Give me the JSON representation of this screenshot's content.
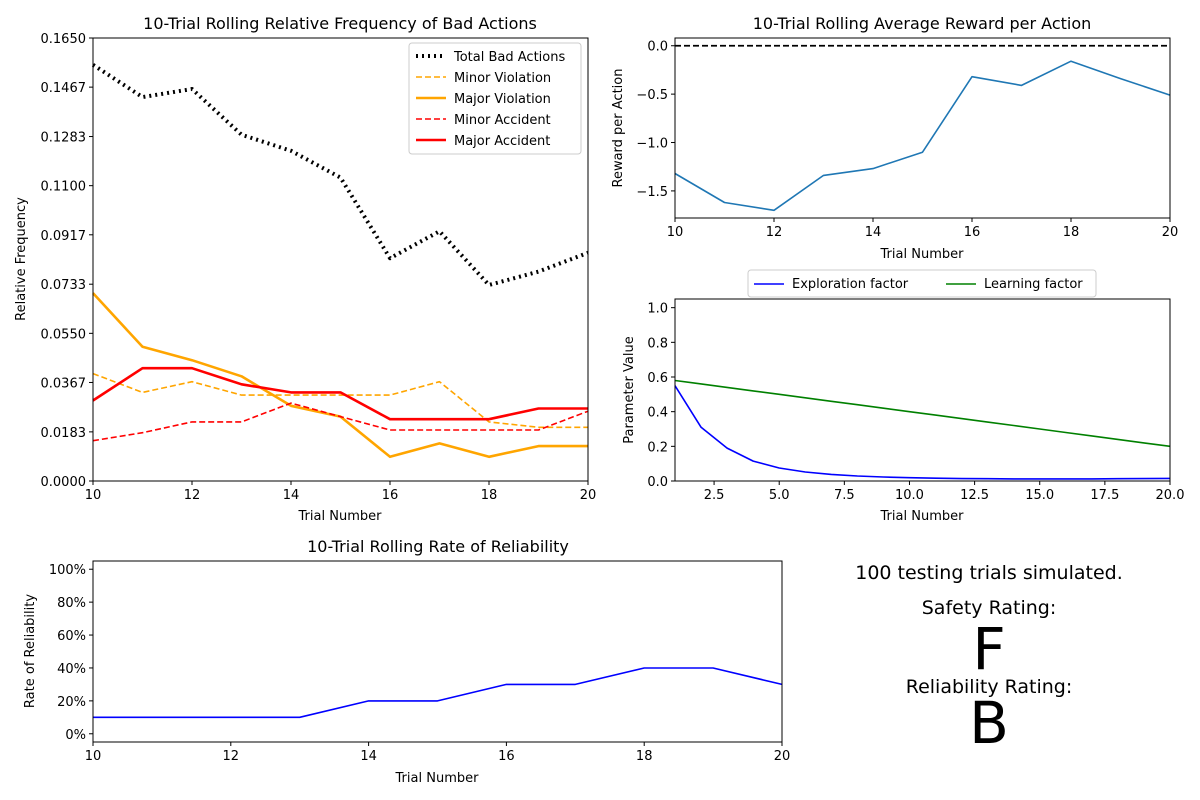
{
  "chart_data": [
    {
      "type": "line",
      "title": "10-Trial Rolling Relative Frequency of Bad Actions",
      "xlabel": "Trial Number",
      "ylabel": "Relative Frequency",
      "xlim": [
        10,
        20
      ],
      "ylim": [
        0,
        0.165
      ],
      "xticks": [
        "10",
        "12",
        "14",
        "16",
        "18",
        "20"
      ],
      "yticks": [
        "0.0000",
        "0.0183",
        "0.0367",
        "0.0550",
        "0.0733",
        "0.0917",
        "0.1100",
        "0.1283",
        "0.1467",
        "0.1650"
      ],
      "legend_position": "top-right",
      "x": [
        10,
        11,
        12,
        13,
        14,
        15,
        16,
        17,
        18,
        19,
        20
      ],
      "series": [
        {
          "name": "Total Bad Actions",
          "color": "#000000",
          "style": "dotted",
          "values": [
            0.155,
            0.143,
            0.146,
            0.129,
            0.123,
            0.113,
            0.083,
            0.093,
            0.073,
            0.078,
            0.085
          ]
        },
        {
          "name": "Minor Violation",
          "color": "#ffa500",
          "style": "dashed",
          "values": [
            0.04,
            0.033,
            0.037,
            0.032,
            0.032,
            0.032,
            0.032,
            0.037,
            0.022,
            0.02,
            0.02
          ]
        },
        {
          "name": "Major Violation",
          "color": "#ffa500",
          "style": "solid",
          "values": [
            0.07,
            0.05,
            0.045,
            0.039,
            0.028,
            0.024,
            0.009,
            0.014,
            0.009,
            0.013,
            0.013
          ]
        },
        {
          "name": "Minor Accident",
          "color": "#ff0000",
          "style": "dashed",
          "values": [
            0.015,
            0.018,
            0.022,
            0.022,
            0.029,
            0.024,
            0.019,
            0.019,
            0.019,
            0.019,
            0.026
          ]
        },
        {
          "name": "Major Accident",
          "color": "#ff0000",
          "style": "solid",
          "values": [
            0.03,
            0.042,
            0.042,
            0.036,
            0.033,
            0.033,
            0.023,
            0.023,
            0.023,
            0.027,
            0.027
          ]
        }
      ]
    },
    {
      "type": "line",
      "title": "10-Trial Rolling Average Reward per Action",
      "xlabel": "Trial Number",
      "ylabel": "Reward per Action",
      "xlim": [
        10,
        20
      ],
      "ylim": [
        -1.78,
        0.08
      ],
      "xticks": [
        "10",
        "12",
        "14",
        "16",
        "18",
        "20"
      ],
      "yticks": [
        "−1.5",
        "−1.0",
        "−0.5",
        "0.0"
      ],
      "reference_line": {
        "y": 0,
        "color": "#000000",
        "style": "dashed"
      },
      "x": [
        10,
        11,
        12,
        13,
        14,
        15,
        16,
        17,
        18,
        19,
        20
      ],
      "series": [
        {
          "color": "#1f77b4",
          "style": "solid",
          "values": [
            -1.32,
            -1.62,
            -1.7,
            -1.34,
            -1.27,
            -1.1,
            -0.32,
            -0.41,
            -0.16,
            -0.34,
            -0.51
          ]
        }
      ]
    },
    {
      "type": "line",
      "title": "",
      "xlabel": "Trial Number",
      "ylabel": "Parameter Value",
      "xlim": [
        1,
        20
      ],
      "ylim": [
        0,
        1.05
      ],
      "xticks": [
        "2.5",
        "5.0",
        "7.5",
        "10.0",
        "12.5",
        "15.0",
        "17.5",
        "20.0"
      ],
      "yticks": [
        "0.0",
        "0.2",
        "0.4",
        "0.6",
        "0.8",
        "1.0"
      ],
      "legend_position": "above",
      "x": [
        1,
        2,
        3,
        4,
        5,
        6,
        7,
        8,
        9,
        10,
        11,
        12,
        13,
        14,
        15,
        16,
        17,
        18,
        19,
        20
      ],
      "series": [
        {
          "name": "Exploration factor",
          "color": "#0000ff",
          "style": "solid",
          "values": [
            0.55,
            0.31,
            0.19,
            0.115,
            0.075,
            0.052,
            0.038,
            0.029,
            0.023,
            0.019,
            0.016,
            0.014,
            0.013,
            0.012,
            0.012,
            0.012,
            0.012,
            0.013,
            0.014,
            0.015
          ]
        },
        {
          "name": "Learning factor",
          "color": "#008000",
          "style": "solid",
          "values": [
            0.58,
            0.56,
            0.54,
            0.52,
            0.5,
            0.48,
            0.46,
            0.44,
            0.42,
            0.4,
            0.38,
            0.36,
            0.34,
            0.32,
            0.3,
            0.28,
            0.26,
            0.24,
            0.22,
            0.2
          ]
        }
      ]
    },
    {
      "type": "line",
      "title": "10-Trial Rolling Rate of Reliability",
      "xlabel": "Trial Number",
      "ylabel": "Rate of Reliability",
      "xlim": [
        10,
        20
      ],
      "ylim": [
        -5,
        105
      ],
      "xticks": [
        "10",
        "12",
        "14",
        "16",
        "18",
        "20"
      ],
      "yticks": [
        "0%",
        "20%",
        "40%",
        "60%",
        "80%",
        "100%"
      ],
      "x": [
        10,
        11,
        12,
        13,
        14,
        15,
        16,
        17,
        18,
        19,
        20
      ],
      "series": [
        {
          "color": "#0000ff",
          "style": "solid",
          "values": [
            10,
            10,
            10,
            10,
            20,
            20,
            30,
            30,
            40,
            40,
            30
          ]
        }
      ]
    }
  ],
  "summary": {
    "trials_text": "100 testing trials simulated.",
    "safety_label": "Safety Rating:",
    "safety_grade": "F",
    "safety_color": "#ff0000",
    "reliability_label": "Reliability Rating:",
    "reliability_grade": "B",
    "reliability_color": "#008000"
  }
}
